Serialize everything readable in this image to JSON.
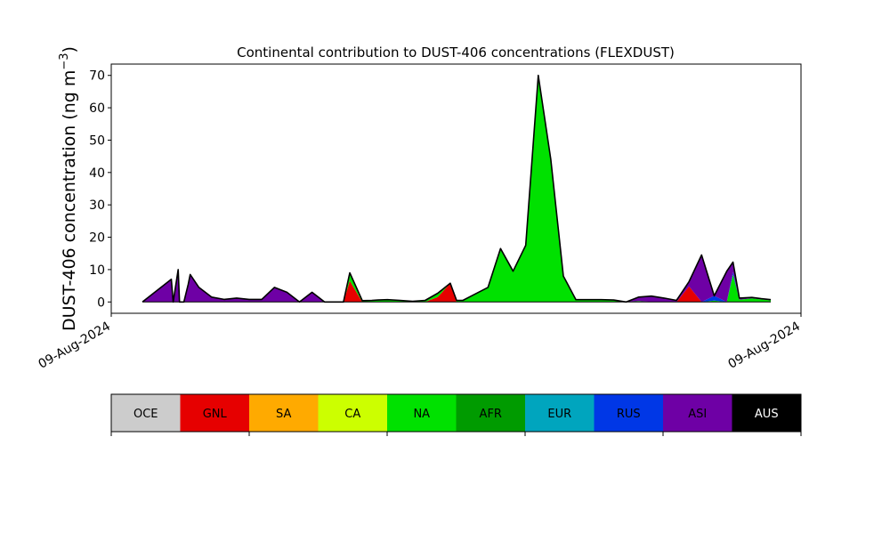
{
  "chart_data": {
    "type": "area",
    "stacked": true,
    "title": "Continental contribution to DUST-406 concentrations (FLEXDUST)",
    "ylabel_main": "DUST-406 concentration (ng m",
    "ylabel_sup": "−3",
    "ylabel_close": ")",
    "xlabel": "",
    "x_tick_labels": [
      "09-Aug-2024",
      "09-Aug-2024"
    ],
    "ylim": [
      -3.5,
      73.5
    ],
    "y_ticks": [
      0,
      10,
      20,
      30,
      40,
      50,
      60,
      70
    ],
    "x_range": [
      0,
      100
    ],
    "x": [
      0,
      4.6,
      4.9,
      5.7,
      5.9,
      6.6,
      7.3,
      7.6,
      9,
      11,
      13,
      15,
      17,
      19,
      21,
      23,
      25,
      27,
      29,
      30.5,
      31.5,
      32,
      33,
      35,
      36.5,
      37.5,
      39,
      41,
      43,
      45,
      47,
      49,
      50,
      51,
      53,
      55,
      57,
      59,
      61,
      63,
      65,
      67,
      69,
      71,
      73,
      75,
      77,
      79,
      81,
      83,
      85,
      87,
      89,
      91,
      93,
      94,
      95,
      97,
      98.5,
      100
    ],
    "series": [
      {
        "name": "GNL",
        "values": [
          0,
          0,
          0,
          0,
          0,
          0,
          0,
          0,
          0,
          0,
          0,
          0,
          0,
          0,
          0,
          0,
          0,
          0,
          0,
          0,
          0,
          0,
          6.5,
          0,
          0,
          0,
          0,
          0,
          0,
          0,
          1.5,
          5.8,
          0,
          0,
          0,
          0,
          0,
          0,
          0,
          0,
          0,
          0,
          0,
          0,
          0,
          0,
          0,
          0,
          0,
          0,
          0,
          4.8,
          0,
          0,
          0,
          0,
          0,
          0,
          0,
          0
        ]
      },
      {
        "name": "NA",
        "values": [
          0,
          0,
          0,
          0,
          0,
          0,
          0,
          0,
          0,
          0,
          0,
          0,
          0,
          0,
          0,
          0,
          0,
          0,
          0,
          0,
          0,
          0,
          2.5,
          0.4,
          0.5,
          0.6,
          0.7,
          0.5,
          0.2,
          0.5,
          1.2,
          0,
          0.5,
          0.5,
          2.5,
          4.5,
          16.5,
          9.5,
          17.5,
          70,
          44,
          8,
          0.7,
          0.7,
          0.7,
          0.6,
          0,
          0.3,
          0,
          0,
          0,
          0,
          0,
          0.4,
          0,
          8.5,
          0.7,
          1.1,
          0.8,
          0.5
        ]
      },
      {
        "name": "RUS",
        "values": [
          0,
          0,
          0,
          0,
          0,
          0,
          0,
          0,
          0,
          0,
          0,
          0,
          0,
          0,
          0,
          0,
          0,
          0,
          0,
          0,
          0,
          0,
          0,
          0,
          0,
          0,
          0,
          0,
          0,
          0,
          0,
          0,
          0,
          0,
          0,
          0,
          0,
          0,
          0,
          0,
          0,
          0,
          0,
          0,
          0,
          0,
          0,
          0,
          0,
          0,
          0,
          0,
          0,
          1.5,
          0,
          0.8,
          0,
          0,
          0,
          0
        ]
      },
      {
        "name": "ASI",
        "values": [
          0,
          7,
          0,
          10,
          0,
          0,
          5.5,
          8.5,
          4.5,
          1.5,
          0.8,
          1.2,
          0.8,
          0.8,
          4.5,
          3,
          0,
          3,
          0,
          0,
          0,
          0,
          0,
          0,
          0,
          0,
          0,
          0,
          0,
          0,
          0,
          0,
          0,
          0,
          0,
          0,
          0,
          0,
          0,
          0,
          0,
          0,
          0,
          0,
          0,
          0,
          0,
          1.2,
          1.8,
          1.2,
          0.5,
          1.5,
          14.5,
          0,
          9.5,
          3,
          0.5,
          0.3,
          0.2,
          0.2
        ]
      }
    ],
    "legend": [
      {
        "label": "OCE",
        "color": "#cccccc",
        "text_color": "#000000"
      },
      {
        "label": "GNL",
        "color": "#e60000",
        "text_color": "#000000"
      },
      {
        "label": "SA",
        "color": "#ffaa00",
        "text_color": "#000000"
      },
      {
        "label": "CA",
        "color": "#ccff00",
        "text_color": "#000000"
      },
      {
        "label": "NA",
        "color": "#00e100",
        "text_color": "#000000"
      },
      {
        "label": "AFR",
        "color": "#009b00",
        "text_color": "#000000"
      },
      {
        "label": "EUR",
        "color": "#00a5be",
        "text_color": "#000000"
      },
      {
        "label": "RUS",
        "color": "#0037e6",
        "text_color": "#000000"
      },
      {
        "label": "ASI",
        "color": "#6e00a5",
        "text_color": "#000000"
      },
      {
        "label": "AUS",
        "color": "#000000",
        "text_color": "#ffffff"
      }
    ],
    "series_colors": {
      "GNL": "#e60000",
      "NA": "#00e100",
      "RUS": "#0037e6",
      "ASI": "#6e00a5"
    },
    "grid": false,
    "legend_placement": "below"
  }
}
